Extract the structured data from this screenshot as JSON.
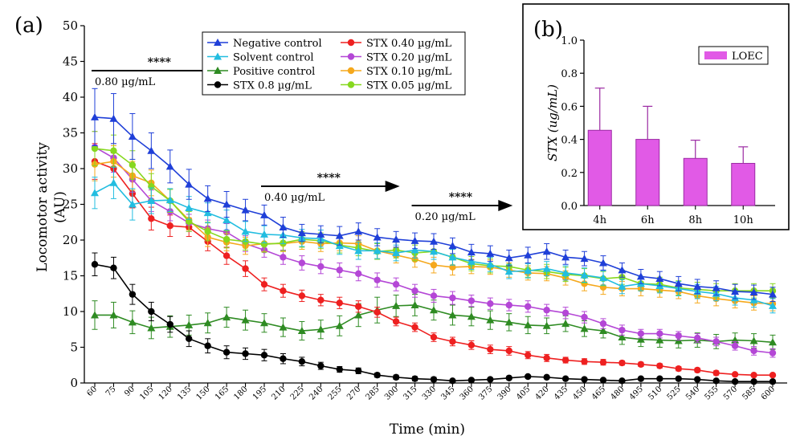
{
  "chart_data": [
    {
      "panel_label": "(a)",
      "type": "line",
      "xlabel": "Time (min)",
      "ylabel": "Locomotor activity (AU)",
      "ylabel_line1": "Locomotor activity",
      "ylabel_line2": "(AU)",
      "ylim": [
        0,
        50
      ],
      "yticks": [
        0,
        5,
        10,
        15,
        20,
        25,
        30,
        35,
        40,
        45,
        50
      ],
      "x": [
        60,
        75,
        90,
        105,
        120,
        135,
        150,
        165,
        180,
        195,
        210,
        225,
        240,
        255,
        270,
        285,
        300,
        315,
        330,
        345,
        360,
        375,
        390,
        405,
        420,
        435,
        450,
        465,
        480,
        495,
        510,
        525,
        540,
        555,
        570,
        585,
        600
      ],
      "error_bars": true,
      "legend_position": "top-center",
      "series": [
        {
          "name": "Negative control",
          "color": "#1f3fd8",
          "marker": "triangle",
          "values": [
            37.2,
            37,
            34.5,
            32.5,
            30.3,
            27.8,
            25.8,
            25,
            24.2,
            23.5,
            21.8,
            21,
            20.8,
            20.6,
            21.2,
            20.4,
            20.1,
            19.9,
            19.8,
            19.2,
            18.3,
            18.1,
            17.5,
            17.9,
            18.4,
            17.6,
            17.4,
            16.8,
            15.8,
            14.9,
            14.6,
            13.9,
            13.5,
            13.3,
            12.8,
            12.7,
            12.4
          ],
          "errors": [
            4,
            3.5,
            3.2,
            2.5,
            2.3,
            2.1,
            1.8,
            1.8,
            1.5,
            1.4,
            1.4,
            1.2,
            1.2,
            1.3,
            1.2,
            1.2,
            1.1,
            1.1,
            1.1,
            1.1,
            1.1,
            1.1,
            1.1,
            1.1,
            1.1,
            1,
            1,
            1,
            1,
            1,
            1,
            1,
            1,
            1,
            1,
            1,
            1
          ]
        },
        {
          "name": "Solvent control",
          "color": "#22bde0",
          "marker": "triangle",
          "values": [
            26.6,
            28,
            25,
            25.5,
            25.6,
            24.5,
            23.8,
            22.8,
            21.2,
            20.8,
            20.7,
            20.3,
            20.2,
            19.2,
            18.5,
            18.5,
            18.2,
            18.6,
            18.4,
            17.6,
            17,
            16.6,
            15.6,
            15.7,
            16,
            15.4,
            15.1,
            14.7,
            13.5,
            13.9,
            13.6,
            13.2,
            12.8,
            12.5,
            11.9,
            11.6,
            10.8
          ],
          "errors": [
            2.2,
            2.2,
            2.2,
            1.8,
            1.6,
            1.6,
            1.4,
            1.4,
            1.4,
            1.2,
            1.2,
            1.2,
            1.2,
            1.2,
            1.2,
            1.1,
            1.1,
            1.1,
            1.1,
            1.1,
            1.1,
            1,
            1,
            1,
            1,
            1,
            1,
            1,
            1,
            1,
            1,
            1,
            1,
            1,
            1,
            1,
            1
          ]
        },
        {
          "name": "Positive control",
          "color": "#2e8b22",
          "marker": "triangle",
          "values": [
            9.5,
            9.5,
            8.5,
            7.7,
            7.9,
            8.1,
            8.4,
            9.2,
            8.8,
            8.4,
            7.8,
            7.3,
            7.5,
            8,
            9.5,
            10.2,
            10.8,
            10.9,
            10.2,
            9.5,
            9.3,
            8.8,
            8.5,
            8.1,
            8,
            8.3,
            7.6,
            7.3,
            6.4,
            6.1,
            6,
            5.9,
            6,
            5.8,
            6,
            5.9,
            5.7
          ],
          "errors": [
            2,
            1.8,
            1.6,
            1.5,
            1.5,
            1.4,
            1.4,
            1.4,
            1.4,
            1.3,
            1.3,
            1.3,
            1.3,
            1.4,
            1.6,
            1.8,
            1.5,
            1.5,
            1.4,
            1.4,
            1.3,
            1.3,
            1.2,
            1.2,
            1.1,
            1.1,
            1.1,
            1,
            1,
            1,
            1,
            1,
            1,
            1,
            1,
            1,
            1
          ]
        },
        {
          "name": "STX 0.8 µg/mL",
          "color": "#000000",
          "marker": "circle",
          "values": [
            16.6,
            16.1,
            12.4,
            10,
            8.2,
            6.2,
            5.2,
            4.3,
            4.1,
            3.9,
            3.4,
            3,
            2.4,
            1.9,
            1.7,
            1.1,
            0.8,
            0.6,
            0.5,
            0.3,
            0.4,
            0.5,
            0.7,
            0.9,
            0.8,
            0.6,
            0.5,
            0.4,
            0.3,
            0.6,
            0.6,
            0.6,
            0.5,
            0.3,
            0.2,
            0.2,
            0.2
          ],
          "errors": [
            1.6,
            1.5,
            1.4,
            1.3,
            1.1,
            1.1,
            1,
            0.9,
            0.8,
            0.8,
            0.7,
            0.6,
            0.5,
            0.4,
            0.4,
            0.3,
            0.3,
            0.3,
            0.3,
            0.2,
            0.2,
            0.2,
            0.2,
            0.2,
            0.2,
            0.2,
            0.2,
            0.2,
            0.2,
            0.2,
            0.2,
            0.2,
            0.2,
            0.2,
            0.2,
            0.2,
            0.2
          ]
        },
        {
          "name": "STX 0.40 µg/mL",
          "color": "#ee2020",
          "marker": "circle",
          "values": [
            31,
            30,
            26.5,
            23,
            22,
            21.8,
            19.8,
            17.8,
            16,
            13.8,
            12.9,
            12.2,
            11.6,
            11.2,
            10.7,
            9.9,
            8.6,
            7.8,
            6.4,
            5.8,
            5.3,
            4.7,
            4.5,
            3.9,
            3.5,
            3.2,
            3,
            2.9,
            2.8,
            2.6,
            2.4,
            2,
            1.8,
            1.4,
            1.2,
            1.1,
            1.1
          ],
          "errors": [
            2.5,
            2.2,
            2,
            1.6,
            1.5,
            1.3,
            1.3,
            1.2,
            1.1,
            0.9,
            0.9,
            0.8,
            0.8,
            0.8,
            0.8,
            0.7,
            0.6,
            0.6,
            0.6,
            0.6,
            0.6,
            0.6,
            0.6,
            0.5,
            0.5,
            0.4,
            0.4,
            0.4,
            0.3,
            0.3,
            0.3,
            0.3,
            0.3,
            0.3,
            0.2,
            0.2,
            0.2
          ]
        },
        {
          "name": "STX 0.20 µg/mL",
          "color": "#b447d6",
          "marker": "circle",
          "values": [
            33,
            31.5,
            28.5,
            25.5,
            24,
            22.4,
            21.6,
            21.1,
            19.5,
            18.6,
            17.6,
            16.8,
            16.3,
            15.8,
            15.3,
            14.4,
            13.8,
            12.9,
            12.2,
            11.9,
            11.5,
            11.1,
            10.9,
            10.7,
            10.2,
            9.8,
            9.2,
            8.3,
            7.4,
            6.9,
            6.9,
            6.6,
            6.3,
            5.8,
            5.2,
            4.5,
            4.2
          ],
          "errors": [
            2.2,
            2,
            1.8,
            1.5,
            1.3,
            1.2,
            1.2,
            1.2,
            1.1,
            1,
            1,
            1,
            1,
            1,
            1,
            1,
            0.9,
            0.9,
            0.9,
            0.9,
            0.8,
            0.8,
            0.8,
            0.8,
            0.8,
            0.8,
            0.8,
            0.7,
            0.7,
            0.6,
            0.6,
            0.6,
            0.6,
            0.6,
            0.6,
            0.6,
            0.6
          ]
        },
        {
          "name": "STX 0.10 µg/mL",
          "color": "#f5a81c",
          "marker": "circle",
          "values": [
            30.6,
            31,
            29,
            28,
            25.5,
            22.8,
            20.4,
            19.7,
            19.2,
            19.5,
            19.5,
            19.8,
            19.5,
            19.6,
            19.5,
            18.5,
            17.9,
            17.3,
            16.5,
            16.2,
            16.3,
            16.2,
            15.8,
            15.4,
            15.3,
            14.7,
            13.9,
            13.4,
            13.2,
            13.2,
            13,
            12.8,
            12.2,
            11.8,
            11.5,
            11.2,
            11.1
          ],
          "errors": [
            2.3,
            2.2,
            2,
            1.8,
            1.6,
            1.4,
            1.3,
            1.2,
            1.2,
            1.1,
            1.1,
            1.1,
            1.1,
            1.1,
            1.1,
            1.1,
            1.1,
            1.1,
            1.1,
            1.1,
            1,
            1,
            1,
            1,
            1,
            1,
            1,
            1,
            1,
            1,
            1,
            1,
            1,
            1,
            1,
            1,
            1
          ]
        },
        {
          "name": "STX 0.05 µg/mL",
          "color": "#86d81e",
          "marker": "circle",
          "values": [
            32.8,
            32.5,
            30.5,
            27.5,
            25.5,
            22.6,
            21.2,
            20.1,
            19.8,
            19.4,
            19.6,
            20.1,
            19.9,
            19.3,
            18.9,
            18.4,
            18.6,
            18.2,
            18.4,
            17.6,
            16.7,
            16.4,
            16.3,
            15.8,
            15.6,
            15.2,
            15,
            14.6,
            14.8,
            13.9,
            13.8,
            13.3,
            13.1,
            12.9,
            12.9,
            12.9,
            12.9
          ],
          "errors": [
            2.4,
            2.2,
            2,
            1.8,
            1.6,
            1.4,
            1.3,
            1.2,
            1.2,
            1.1,
            1.1,
            1.1,
            1.1,
            1.1,
            1.1,
            1.1,
            1.1,
            1.1,
            1.1,
            1.1,
            1,
            1,
            1,
            1,
            1,
            1,
            1,
            1,
            1,
            1,
            1,
            1,
            1,
            1,
            1,
            1,
            1
          ]
        }
      ],
      "annotations": [
        {
          "stars": "****",
          "text": "0.80 µg/mL",
          "x_start": 60,
          "x_end": 150
        },
        {
          "stars": "****",
          "text": "0.40 µg/mL",
          "x_start": 195,
          "x_end": 285
        },
        {
          "stars": "****",
          "text": "0.20 µg/mL",
          "x_start": 315,
          "x_end": 375
        }
      ]
    },
    {
      "panel_label": "(b)",
      "type": "bar",
      "categories": [
        "4h",
        "6h",
        "8h",
        "10h"
      ],
      "series": [
        {
          "name": "LOEC",
          "color": "#e15ae6",
          "values": [
            0.455,
            0.4,
            0.285,
            0.255
          ],
          "errors": [
            0.255,
            0.2,
            0.11,
            0.1
          ]
        }
      ],
      "xlabel": "",
      "ylabel": "STX (ug/mL)",
      "ylim": [
        0,
        1.0
      ],
      "yticks": [
        "0.0",
        "0.2",
        "0.4",
        "0.6",
        "0.8",
        "1.0"
      ],
      "legend_position": "top-right"
    }
  ]
}
